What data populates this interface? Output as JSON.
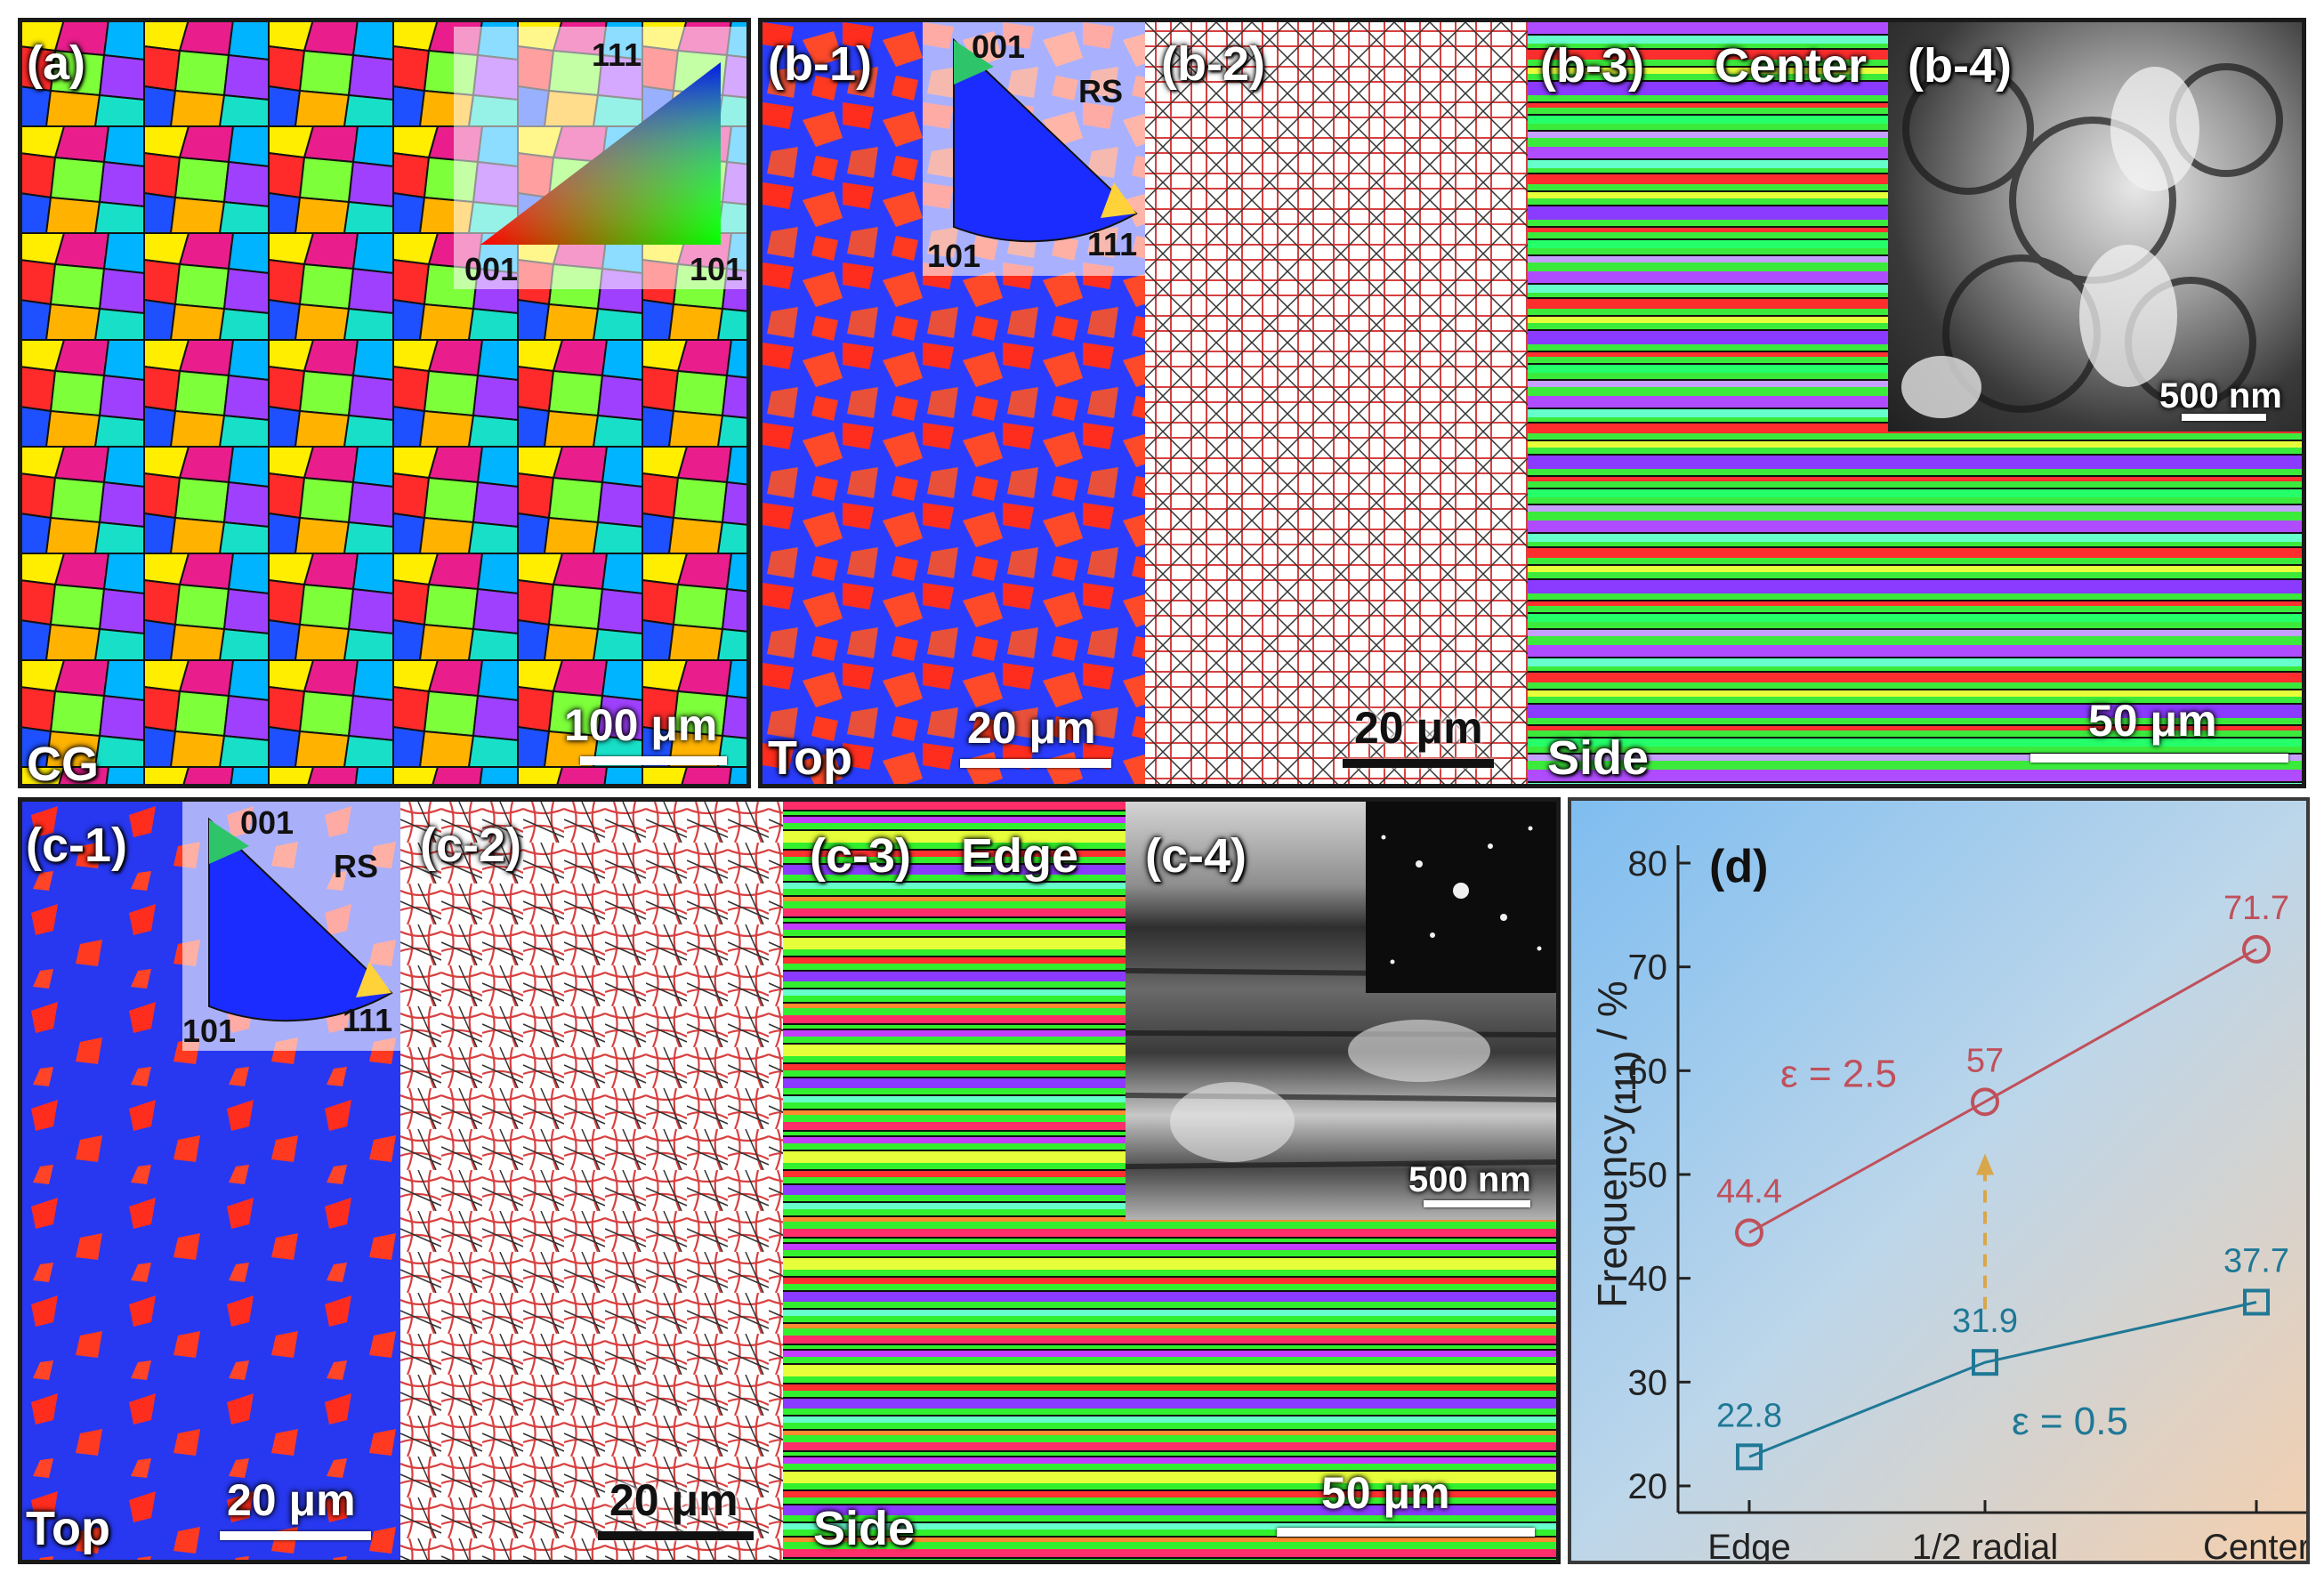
{
  "panels": {
    "a": {
      "label": "(a)",
      "corner": "CG",
      "scale": "100 μm"
    },
    "b1": {
      "label": "(b-1)",
      "corner": "Top",
      "scale": "20 μm"
    },
    "b2": {
      "label": "(b-2)",
      "scale": "20 μm"
    },
    "b3": {
      "label": "(b-3)",
      "tag": "Center",
      "corner": "Side",
      "scale": "50 μm"
    },
    "b4": {
      "label": "(b-4)",
      "scale": "500 nm"
    },
    "c1": {
      "label": "(c-1)",
      "corner": "Top",
      "scale": "20 μm"
    },
    "c2": {
      "label": "(c-2)",
      "scale": "20 μm"
    },
    "c3": {
      "label": "(c-3)",
      "tag": "Edge",
      "corner": "Side",
      "scale": "50 μm"
    },
    "c4": {
      "label": "(c-4)",
      "scale": "500 nm"
    },
    "d": {
      "label": "(d)"
    }
  },
  "ipf_key": {
    "v001": "001",
    "v101": "101",
    "v111": "111"
  },
  "pole_figure": {
    "label": "RS",
    "v001": "001",
    "v101": "101",
    "v111": "111"
  },
  "colors": {
    "series_high": "#c0505a",
    "series_low": "#1f7896",
    "arrow": "#d9a64a"
  },
  "chart_data": {
    "type": "line",
    "categories": [
      "Edge",
      "1/2 radial",
      "Center"
    ],
    "ylabel": "Frequency(111) / %",
    "ylabel_main": "Frequency",
    "ylabel_sub": "(111)",
    "ylabel_tail": " / %",
    "ylim": [
      20,
      80
    ],
    "yticks": [
      20,
      30,
      40,
      50,
      60,
      70,
      80
    ],
    "series": [
      {
        "name": "ε = 2.5",
        "values": [
          44.4,
          57,
          71.7
        ],
        "labels": [
          "44.4",
          "57",
          "71.7"
        ],
        "marker": "circle"
      },
      {
        "name": "ε = 0.5",
        "values": [
          22.8,
          31.9,
          37.7
        ],
        "labels": [
          "22.8",
          "31.9",
          "37.7"
        ],
        "marker": "square"
      }
    ],
    "grid": false
  }
}
